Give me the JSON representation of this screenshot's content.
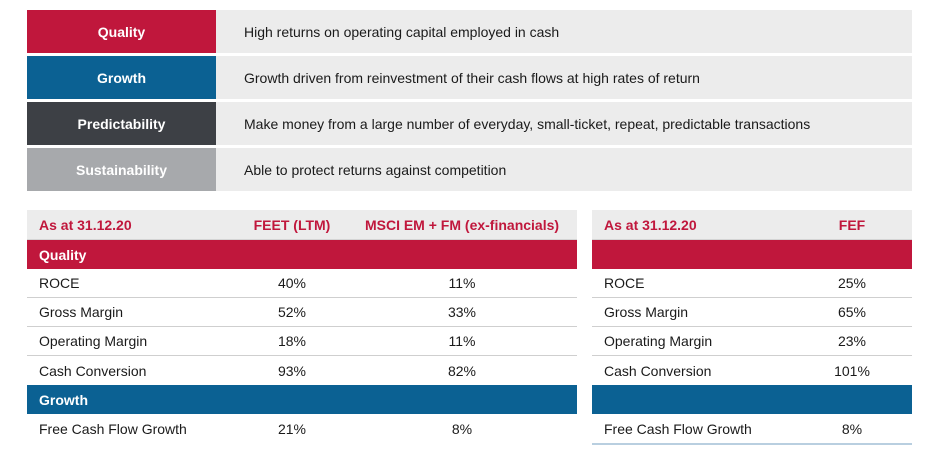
{
  "criteria": [
    {
      "label": "Quality",
      "text": "High returns on operating capital employed in cash",
      "color": "#c0173c"
    },
    {
      "label": "Growth",
      "text": "Growth driven from reinvestment of their cash flows at high rates of return",
      "color": "#0b6193"
    },
    {
      "label": "Predictability",
      "text": "Make money from a large number of everyday, small-ticket, repeat, predictable transactions",
      "color": "#3d4045"
    },
    {
      "label": "Sustainability",
      "text": "Able to protect returns against competition",
      "color": "#a7a9ac"
    }
  ],
  "left_table": {
    "headers": [
      "As at 31.12.20",
      "FEET (LTM)",
      "MSCI EM + FM (ex-financials)"
    ],
    "quality_title": "Quality",
    "quality_rows": [
      [
        "ROCE",
        "40%",
        "11%"
      ],
      [
        "Gross Margin",
        "52%",
        "33%"
      ],
      [
        "Operating Margin",
        "18%",
        "11%"
      ],
      [
        "Cash Conversion",
        "93%",
        "82%"
      ]
    ],
    "growth_title": "Growth",
    "growth_rows": [
      [
        "Free Cash Flow Growth",
        "21%",
        "8%"
      ]
    ]
  },
  "right_table": {
    "headers": [
      "As at 31.12.20",
      "FEF"
    ],
    "quality_rows": [
      [
        "ROCE",
        "25%"
      ],
      [
        "Gross Margin",
        "65%"
      ],
      [
        "Operating Margin",
        "23%"
      ],
      [
        "Cash Conversion",
        "101%"
      ]
    ],
    "growth_rows": [
      [
        "Free Cash Flow Growth",
        "8%"
      ]
    ]
  }
}
